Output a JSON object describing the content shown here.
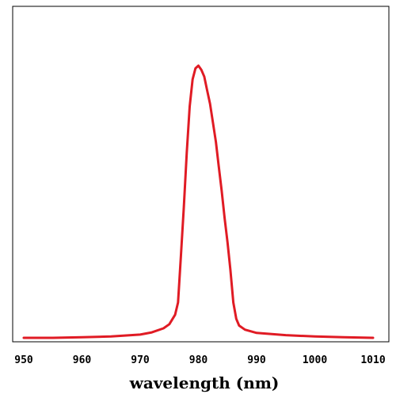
{
  "chart_data": {
    "type": "line",
    "title": "",
    "xlabel": "wavelength (nm)",
    "ylabel": "",
    "xlim": [
      950,
      1012
    ],
    "ylim": [
      0,
      1.0
    ],
    "x_ticks": [
      950,
      960,
      970,
      980,
      990,
      1000,
      1010
    ],
    "x_tick_labels": [
      "950",
      "960",
      "970",
      "980",
      "990",
      "1000",
      "1010"
    ],
    "grid": false,
    "legend": "none",
    "colors": {
      "line": "#e01b24",
      "axis": "#000000",
      "background": "#ffffff"
    },
    "series": [
      {
        "x": [
          950,
          955,
          960,
          965,
          970,
          972,
          974,
          975,
          976,
          976.5,
          977,
          977.5,
          978,
          978.5,
          979,
          979.5,
          980,
          980.5,
          981,
          981.5,
          982,
          982.5,
          983,
          983.5,
          984,
          984.5,
          985,
          985.5,
          986,
          986.5,
          987,
          988,
          990,
          995,
          1000,
          1005,
          1010
        ],
        "y": [
          0.0,
          0.0,
          0.002,
          0.005,
          0.012,
          0.02,
          0.035,
          0.05,
          0.085,
          0.13,
          0.3,
          0.48,
          0.68,
          0.85,
          0.95,
          0.99,
          1.0,
          0.985,
          0.96,
          0.91,
          0.86,
          0.79,
          0.72,
          0.63,
          0.54,
          0.44,
          0.35,
          0.25,
          0.13,
          0.07,
          0.045,
          0.03,
          0.018,
          0.01,
          0.005,
          0.002,
          0.0
        ]
      }
    ]
  }
}
